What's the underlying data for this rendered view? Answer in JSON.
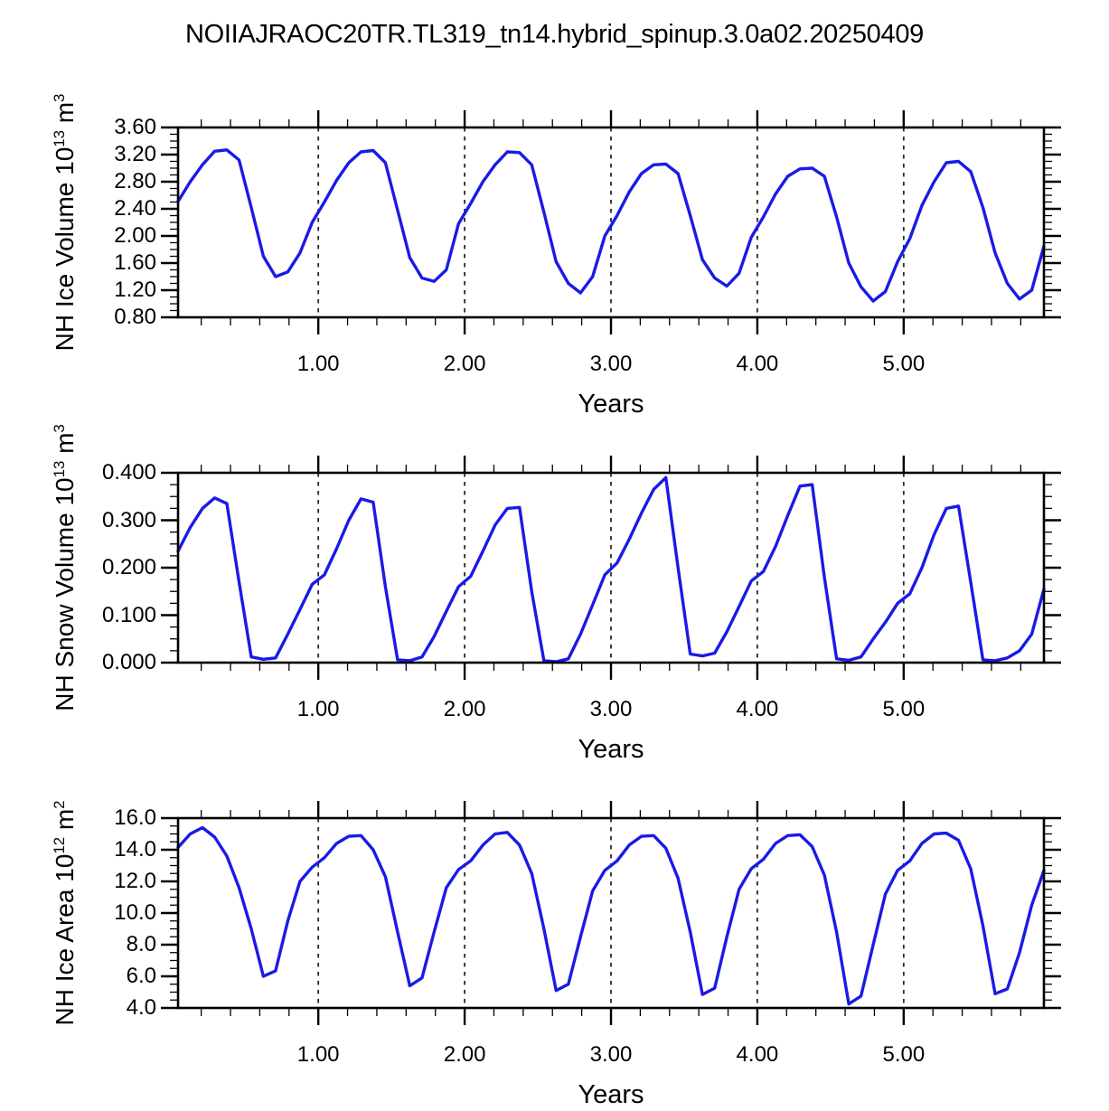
{
  "title": "NOIIAJRAOC20TR.TL319_tn14.hybrid_spinup.3.0a02.20250409",
  "panels": [
    {
      "name": "nh-ice-volume",
      "ylabel": {
        "pre": "NH Ice Volume 10",
        "sup1": "13",
        "mid": " m",
        "sup2": "3"
      },
      "xlabel": "Years"
    },
    {
      "name": "nh-snow-volume",
      "ylabel": {
        "pre": "NH Snow Volume 10",
        "sup1": "13",
        "mid": " m",
        "sup2": "3"
      },
      "xlabel": "Years"
    },
    {
      "name": "nh-ice-area",
      "ylabel": {
        "pre": "NH Ice Area 10",
        "sup1": "12",
        "mid": " m",
        "sup2": "2"
      },
      "xlabel": "Years"
    }
  ],
  "chart_data": {
    "type": "line",
    "title": "NOIIAJRAOC20TR.TL319_tn14.hybrid_spinup.3.0a02.20250409",
    "x_unit": "Years",
    "x_start": 0.0417,
    "x_step": 0.08333,
    "points_per_year": 12,
    "n_points": 72,
    "xlim": [
      0.0417,
      5.9583
    ],
    "x_major_ticks": [
      1,
      2,
      3,
      4,
      5
    ],
    "xtick_labels": [
      "1.00",
      "2.00",
      "3.00",
      "4.00",
      "5.00"
    ],
    "x_minor_step": 0.2,
    "grid": "dashed-vertical-at-x-majors",
    "grid_color": "#2a2a2a",
    "line_color": "#1a1ae6",
    "frame_color": "#000000",
    "legend": "none",
    "panels": [
      {
        "ylabel": "NH Ice Volume 10^13 m^3",
        "xlabel": "Years",
        "ylim": [
          0.8,
          3.6
        ],
        "y_major_ticks": [
          0.8,
          1.2,
          1.6,
          2.0,
          2.4,
          2.8,
          3.2,
          3.6
        ],
        "ytick_labels": [
          "0.80",
          "1.20",
          "1.60",
          "2.00",
          "2.40",
          "2.80",
          "3.20",
          "3.60"
        ],
        "y_minor_step": 0.1,
        "values": [
          2.51,
          2.8,
          3.05,
          3.25,
          3.27,
          3.12,
          2.42,
          1.7,
          1.4,
          1.47,
          1.75,
          2.2,
          2.5,
          2.82,
          3.08,
          3.24,
          3.26,
          3.08,
          2.38,
          1.68,
          1.38,
          1.33,
          1.5,
          2.18,
          2.48,
          2.8,
          3.05,
          3.24,
          3.23,
          3.05,
          2.35,
          1.62,
          1.3,
          1.16,
          1.4,
          2.0,
          2.3,
          2.65,
          2.92,
          3.05,
          3.06,
          2.92,
          2.3,
          1.65,
          1.38,
          1.26,
          1.45,
          1.98,
          2.28,
          2.62,
          2.88,
          2.99,
          3.0,
          2.88,
          2.28,
          1.6,
          1.25,
          1.04,
          1.18,
          1.62,
          1.96,
          2.45,
          2.8,
          3.08,
          3.1,
          2.95,
          2.42,
          1.75,
          1.3,
          1.07,
          1.2,
          1.85
        ]
      },
      {
        "ylabel": "NH Snow Volume 10^13 m^3",
        "xlabel": "Years",
        "ylim": [
          0.0,
          0.4
        ],
        "y_major_ticks": [
          0.0,
          0.1,
          0.2,
          0.3,
          0.4
        ],
        "ytick_labels": [
          "0.000",
          "0.100",
          "0.200",
          "0.300",
          "0.400"
        ],
        "y_minor_step": 0.025,
        "values": [
          0.235,
          0.285,
          0.325,
          0.347,
          0.335,
          0.17,
          0.012,
          0.007,
          0.01,
          0.06,
          0.112,
          0.165,
          0.185,
          0.24,
          0.3,
          0.345,
          0.338,
          0.16,
          0.006,
          0.004,
          0.012,
          0.055,
          0.108,
          0.16,
          0.182,
          0.235,
          0.29,
          0.325,
          0.327,
          0.15,
          0.004,
          0.002,
          0.008,
          0.06,
          0.122,
          0.185,
          0.21,
          0.26,
          0.315,
          0.365,
          0.39,
          0.2,
          0.018,
          0.014,
          0.02,
          0.065,
          0.118,
          0.172,
          0.192,
          0.245,
          0.31,
          0.372,
          0.375,
          0.18,
          0.008,
          0.005,
          0.012,
          0.05,
          0.085,
          0.125,
          0.145,
          0.2,
          0.27,
          0.325,
          0.33,
          0.17,
          0.006,
          0.004,
          0.01,
          0.025,
          0.06,
          0.155
        ]
      },
      {
        "ylabel": "NH Ice Area 10^12 m^2",
        "xlabel": "Years",
        "ylim": [
          4.0,
          16.0
        ],
        "y_major_ticks": [
          4,
          6,
          8,
          10,
          12,
          14,
          16
        ],
        "ytick_labels": [
          "4.0",
          "6.0",
          "8.0",
          "10.0",
          "12.0",
          "14.0",
          "16.0"
        ],
        "y_minor_step": 0.5,
        "values": [
          14.15,
          15.0,
          15.4,
          14.8,
          13.6,
          11.6,
          9.0,
          6.0,
          6.35,
          9.5,
          12.0,
          12.9,
          13.5,
          14.4,
          14.85,
          14.9,
          14.0,
          12.3,
          8.8,
          5.4,
          5.9,
          8.8,
          11.6,
          12.75,
          13.3,
          14.3,
          15.0,
          15.1,
          14.3,
          12.5,
          9.0,
          5.1,
          5.5,
          8.5,
          11.4,
          12.7,
          13.3,
          14.3,
          14.85,
          14.9,
          14.1,
          12.2,
          8.8,
          4.85,
          5.25,
          8.5,
          11.5,
          12.8,
          13.4,
          14.4,
          14.9,
          14.95,
          14.2,
          12.4,
          8.8,
          4.25,
          4.75,
          8.0,
          11.2,
          12.7,
          13.3,
          14.4,
          15.0,
          15.05,
          14.6,
          12.8,
          9.2,
          4.9,
          5.2,
          7.5,
          10.5,
          12.7
        ]
      }
    ]
  }
}
